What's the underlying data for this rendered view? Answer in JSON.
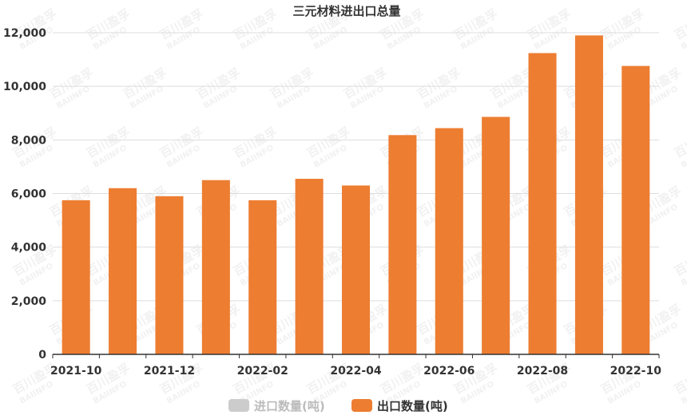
{
  "chart_data": {
    "type": "bar",
    "title": "三元材料进出口总量",
    "categories": [
      "2021-10",
      "2021-11",
      "2021-12",
      "2022-01",
      "2022-02",
      "2022-03",
      "2022-04",
      "2022-05",
      "2022-06",
      "2022-07",
      "2022-08",
      "2022-09",
      "2022-10"
    ],
    "x_tick_labels": [
      "2021-10",
      "2021-12",
      "2022-02",
      "2022-04",
      "2022-06",
      "2022-08",
      "2022-10"
    ],
    "y_tick_labels": [
      "0",
      "2,000",
      "4,000",
      "6,000",
      "8,000",
      "10,000",
      "12,000"
    ],
    "ylim": [
      0,
      12000
    ],
    "grid": true,
    "legend_position": "bottom-center",
    "series": [
      {
        "name": "进口数量(吨)",
        "color": "#cccccc",
        "hidden": true,
        "values": [
          null,
          null,
          null,
          null,
          null,
          null,
          null,
          null,
          null,
          null,
          null,
          null,
          null
        ]
      },
      {
        "name": "出口数量(吨)",
        "color": "#ed7d31",
        "values": [
          5750,
          6200,
          5900,
          6500,
          5750,
          6550,
          6300,
          8180,
          8440,
          8860,
          11240,
          11900,
          10760
        ]
      }
    ]
  },
  "watermark": {
    "line1": "百川盈孚",
    "line2": "BAIINFO"
  }
}
